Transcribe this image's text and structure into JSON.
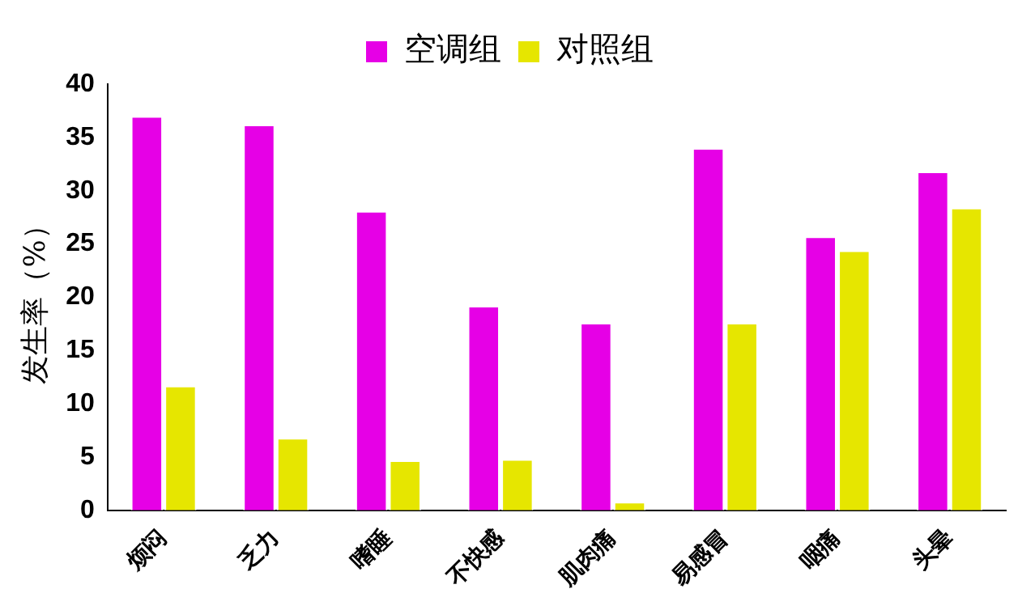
{
  "chart_data": {
    "type": "bar",
    "ylabel": "发生率（%）",
    "categories": [
      "烦闷",
      "乏力",
      "嗜睡",
      "不快感",
      "肌肉痛",
      "易感冒",
      "咽痛",
      "头晕"
    ],
    "series": [
      {
        "name": "空调组",
        "color": "#e600e6",
        "values": [
          37,
          36.2,
          28.1,
          19.2,
          17.6,
          34,
          25.7,
          31.8
        ]
      },
      {
        "name": "对照组",
        "color": "#e6e600",
        "values": [
          11.7,
          6.8,
          4.7,
          4.8,
          0.8,
          17.6,
          24.4,
          28.4
        ]
      }
    ],
    "ylim": [
      0,
      40
    ],
    "yticks": [
      0,
      5,
      10,
      15,
      20,
      25,
      30,
      35,
      40
    ],
    "grid": false,
    "legend": "top"
  }
}
